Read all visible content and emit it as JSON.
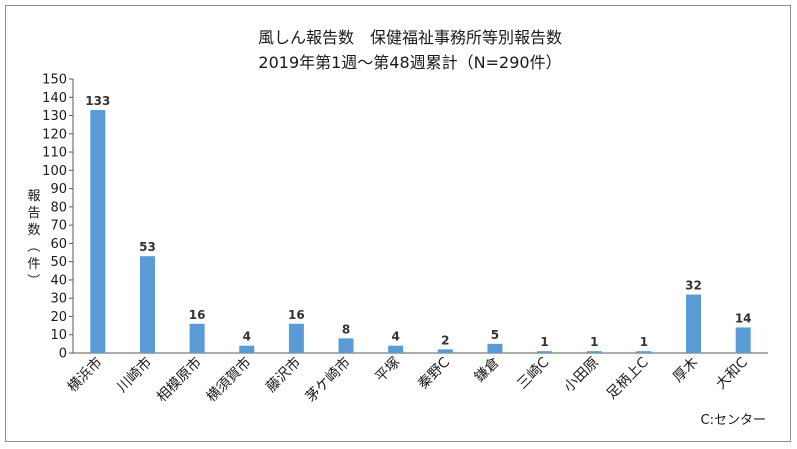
{
  "chart_data": {
    "type": "bar",
    "title": "風しん報告数　保健福祉事務所等別報告数",
    "subtitle": "2019年第1週～第48週累計（N=290件）",
    "ylabel": "報告数（件）",
    "xlabel": "",
    "ylim": [
      0,
      150
    ],
    "ytick_step": 10,
    "grid": false,
    "legend": "none",
    "bar_color": "#5b9bd5",
    "categories": [
      "横浜市",
      "川崎市",
      "相模原市",
      "横須賀市",
      "藤沢市",
      "茅ケ崎市",
      "平塚",
      "秦野C",
      "鎌倉",
      "三崎C",
      "小田原",
      "足柄上C",
      "厚木",
      "大和C"
    ],
    "values": [
      133,
      53,
      16,
      4,
      16,
      8,
      4,
      2,
      5,
      1,
      1,
      1,
      32,
      14
    ],
    "note": "C:センター"
  }
}
